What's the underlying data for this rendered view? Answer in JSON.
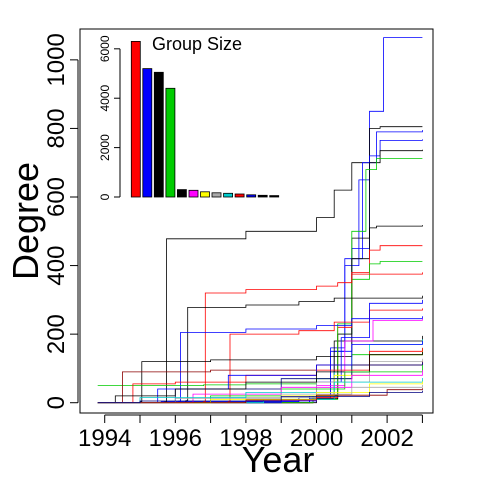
{
  "chart_data": [
    {
      "type": "line",
      "title": "",
      "xlabel": "Year",
      "ylabel": "Degree",
      "xlim": [
        1993.3,
        2003.3
      ],
      "ylim": [
        -30,
        1090
      ],
      "x_ticks": [
        1994,
        1996,
        1998,
        2000,
        2002
      ],
      "x_tick_labels": [
        "1994",
        "1996",
        "1998",
        "2000",
        "2002"
      ],
      "x_minor_ticks": [
        1995,
        1997,
        1999,
        2001,
        2003
      ],
      "y_ticks": [
        0,
        200,
        400,
        600,
        800,
        1000
      ],
      "y_tick_labels": [
        "0",
        "200",
        "400",
        "600",
        "800",
        "1000"
      ],
      "grid": false,
      "legend": "none",
      "note": "Several hundred overlapping step-like series; representative series listed.",
      "series": [
        {
          "color": "#0000ff",
          "points": [
            [
              1993.8,
              0
            ],
            [
              1995.6,
              3
            ],
            [
              1999.5,
              15
            ],
            [
              2000.4,
              150
            ],
            [
              2000.8,
              400
            ],
            [
              2001.2,
              650
            ],
            [
              2001.5,
              850
            ],
            [
              2001.9,
              1065
            ],
            [
              2003,
              1065
            ]
          ]
        },
        {
          "color": "#000000",
          "points": [
            [
              1993.8,
              0
            ],
            [
              1995.7,
              2
            ],
            [
              1995.75,
              478
            ],
            [
              1998,
              500
            ],
            [
              2000,
              540
            ],
            [
              2000.5,
              620
            ],
            [
              2001,
              700
            ],
            [
              2001.5,
              800
            ],
            [
              2001.8,
              805
            ],
            [
              2003,
              805
            ]
          ]
        },
        {
          "color": "#0000ff",
          "points": [
            [
              1993.8,
              0
            ],
            [
              1999.8,
              20
            ],
            [
              2000.4,
              160
            ],
            [
              2000.8,
              420
            ],
            [
              2001.3,
              700
            ],
            [
              2001.7,
              790
            ],
            [
              2003,
              795
            ]
          ]
        },
        {
          "color": "#0000ff",
          "points": [
            [
              1993.8,
              0
            ],
            [
              1999.8,
              12
            ],
            [
              2000.5,
              150
            ],
            [
              2001,
              450
            ],
            [
              2001.5,
              720
            ],
            [
              2001.8,
              765
            ],
            [
              2003,
              768
            ]
          ]
        },
        {
          "color": "#000000",
          "points": [
            [
              1993.8,
              0
            ],
            [
              1999.9,
              10
            ],
            [
              2000.5,
              180
            ],
            [
              2001,
              480
            ],
            [
              2001.5,
              700
            ],
            [
              2001.8,
              735
            ],
            [
              2003,
              738
            ]
          ]
        },
        {
          "color": "#00cc00",
          "points": [
            [
              1993.8,
              0
            ],
            [
              1999.9,
              10
            ],
            [
              2000.6,
              200
            ],
            [
              2001,
              500
            ],
            [
              2001.4,
              680
            ],
            [
              2001.7,
              712
            ],
            [
              2003,
              712
            ]
          ]
        },
        {
          "color": "#000000",
          "points": [
            [
              1993.8,
              0
            ],
            [
              2000,
              12
            ],
            [
              2000.6,
              200
            ],
            [
              2001,
              420
            ],
            [
              2001.5,
              510
            ],
            [
              2001.7,
              515
            ],
            [
              2003,
              518
            ]
          ]
        },
        {
          "color": "#ff0000",
          "points": [
            [
              1993.8,
              0
            ],
            [
              1999.9,
              15
            ],
            [
              2000.6,
              220
            ],
            [
              2001,
              380
            ],
            [
              2001.5,
              445
            ],
            [
              2001.8,
              458
            ],
            [
              2003,
              458
            ]
          ]
        },
        {
          "color": "#00cc00",
          "points": [
            [
              1993.8,
              0
            ],
            [
              1999.9,
              20
            ],
            [
              2000.6,
              230
            ],
            [
              2001,
              360
            ],
            [
              2001.5,
              405
            ],
            [
              2001.8,
              412
            ],
            [
              2003,
              412
            ]
          ]
        },
        {
          "color": "#ff0000",
          "points": [
            [
              1993.8,
              0
            ],
            [
              1996.8,
              3
            ],
            [
              1996.85,
              320
            ],
            [
              1998,
              330
            ],
            [
              2000,
              340
            ],
            [
              2000.6,
              350
            ],
            [
              2001,
              375
            ],
            [
              2003,
              380
            ]
          ]
        },
        {
          "color": "#000000",
          "points": [
            [
              1993.8,
              0
            ],
            [
              1996.3,
              6
            ],
            [
              1996.35,
              278
            ],
            [
              1998,
              285
            ],
            [
              1999.5,
              295
            ],
            [
              2000.5,
              305
            ],
            [
              2003,
              312
            ]
          ]
        },
        {
          "color": "#0000ff",
          "points": [
            [
              1993.8,
              0
            ],
            [
              1996.1,
              5
            ],
            [
              1996.15,
              205
            ],
            [
              1998,
              215
            ],
            [
              2000,
              225
            ],
            [
              2001,
              245
            ],
            [
              2003,
              252
            ]
          ]
        },
        {
          "color": "#ff0000",
          "points": [
            [
              1993.8,
              0
            ],
            [
              1997.5,
              4
            ],
            [
              1997.55,
              200
            ],
            [
              1999.5,
              210
            ],
            [
              2000.5,
              235
            ],
            [
              2001.5,
              270
            ],
            [
              2003,
              275
            ]
          ]
        },
        {
          "color": "#000000",
          "points": [
            [
              1993.8,
              0
            ],
            [
              1995,
              3
            ],
            [
              1995.05,
              120
            ],
            [
              1997,
              125
            ],
            [
              2000,
              135
            ],
            [
              2001,
              180
            ],
            [
              2003,
              195
            ]
          ]
        },
        {
          "color": "#0000ff",
          "points": [
            [
              1993.8,
              0
            ],
            [
              1999,
              5
            ],
            [
              2000,
              60
            ],
            [
              2000.7,
              190
            ],
            [
              2001.5,
              290
            ],
            [
              2003,
              300
            ]
          ]
        },
        {
          "color": "#ff00ff",
          "points": [
            [
              1993.8,
              0
            ],
            [
              1998,
              8
            ],
            [
              2000,
              50
            ],
            [
              2000.8,
              180
            ],
            [
              2001.6,
              240
            ],
            [
              2003,
              245
            ]
          ]
        },
        {
          "color": "#00cc00",
          "points": [
            [
              1993.8,
              50
            ],
            [
              1996.8,
              52
            ],
            [
              1998,
              55
            ],
            [
              2000,
              70
            ],
            [
              2001,
              140
            ],
            [
              2003,
              160
            ]
          ]
        },
        {
          "color": "#00cccc",
          "points": [
            [
              1993.8,
              0
            ],
            [
              1998.5,
              10
            ],
            [
              2000.5,
              90
            ],
            [
              2001.5,
              170
            ],
            [
              2003,
              185
            ]
          ]
        },
        {
          "color": "#ffff00",
          "points": [
            [
              1993.8,
              0
            ],
            [
              1998,
              20
            ],
            [
              2000.5,
              80
            ],
            [
              2001.5,
              140
            ],
            [
              2003,
              150
            ]
          ]
        },
        {
          "color": "#aaaaaa",
          "points": [
            [
              1993.8,
              0
            ],
            [
              1997,
              15
            ],
            [
              2000,
              60
            ],
            [
              2001.5,
              120
            ],
            [
              2003,
              128
            ]
          ]
        },
        {
          "color": "#8b0000",
          "points": [
            [
              1993.8,
              0
            ],
            [
              1994.5,
              90
            ],
            [
              1997,
              95
            ],
            [
              2000,
              110
            ],
            [
              2003,
              120
            ]
          ]
        },
        {
          "color": "#000080",
          "points": [
            [
              1993.8,
              0
            ],
            [
              1996,
              40
            ],
            [
              1999,
              70
            ],
            [
              2001,
              110
            ],
            [
              2003,
              118
            ]
          ]
        },
        {
          "color": "#ff0000",
          "points": [
            [
              1993.8,
              0
            ],
            [
              1994.8,
              55
            ],
            [
              1996,
              60
            ],
            [
              1998,
              80
            ],
            [
              2000,
              95
            ],
            [
              2001.5,
              150
            ],
            [
              2003,
              160
            ]
          ]
        },
        {
          "color": "#0000ff",
          "points": [
            [
              1993.8,
              0
            ],
            [
              1995.5,
              40
            ],
            [
              1997.5,
              80
            ],
            [
              2000,
              110
            ],
            [
              2001,
              170
            ],
            [
              2003,
              180
            ]
          ]
        },
        {
          "color": "#000000",
          "points": [
            [
              1993.8,
              0
            ],
            [
              1994.3,
              20
            ],
            [
              1996,
              40
            ],
            [
              1998,
              60
            ],
            [
              2000,
              90
            ],
            [
              2001.5,
              140
            ],
            [
              2003,
              148
            ]
          ]
        },
        {
          "color": "#00cc00",
          "points": [
            [
              1993.8,
              0
            ],
            [
              1997,
              20
            ],
            [
              1999,
              40
            ],
            [
              2000.8,
              90
            ],
            [
              2003,
              110
            ]
          ]
        },
        {
          "color": "#ff00ff",
          "points": [
            [
              1993.8,
              0
            ],
            [
              1996.5,
              25
            ],
            [
              1999,
              45
            ],
            [
              2001,
              80
            ],
            [
              2003,
              95
            ]
          ]
        },
        {
          "color": "#00cccc",
          "points": [
            [
              1993.8,
              0
            ],
            [
              1995,
              15
            ],
            [
              1998,
              30
            ],
            [
              2000.5,
              60
            ],
            [
              2003,
              72
            ]
          ]
        },
        {
          "color": "#ffff00",
          "points": [
            [
              1993.8,
              0
            ],
            [
              1997,
              10
            ],
            [
              2000,
              30
            ],
            [
              2001.5,
              55
            ],
            [
              2003,
              62
            ]
          ]
        },
        {
          "color": "#aaaaaa",
          "points": [
            [
              1993.8,
              0
            ],
            [
              1996,
              12
            ],
            [
              1999,
              25
            ],
            [
              2001,
              45
            ],
            [
              2003,
              52
            ]
          ]
        },
        {
          "color": "#8b0000",
          "points": [
            [
              1993.8,
              0
            ],
            [
              1998,
              8
            ],
            [
              2000,
              22
            ],
            [
              2002,
              38
            ],
            [
              2003,
              42
            ]
          ]
        },
        {
          "color": "#000080",
          "points": [
            [
              1993.8,
              0
            ],
            [
              1995,
              5
            ],
            [
              1999,
              18
            ],
            [
              2001.5,
              30
            ],
            [
              2003,
              35
            ]
          ]
        }
      ]
    },
    {
      "type": "bar",
      "title": "Group Size",
      "ylim": [
        0,
        6600
      ],
      "y_ticks": [
        0,
        2000,
        4000,
        6000
      ],
      "y_tick_labels": [
        "0",
        "2000",
        "4000",
        "6000"
      ],
      "values": [
        6300,
        5200,
        5050,
        4400,
        300,
        270,
        210,
        170,
        150,
        120,
        90,
        70,
        55
      ],
      "colors": [
        "#ff0000",
        "#0000ff",
        "#000000",
        "#00cc00",
        "#000000",
        "#ff00ff",
        "#ffff00",
        "#aaaaaa",
        "#00cccc",
        "#ff0000",
        "#0000ff",
        "#000000",
        "#000000"
      ]
    }
  ]
}
